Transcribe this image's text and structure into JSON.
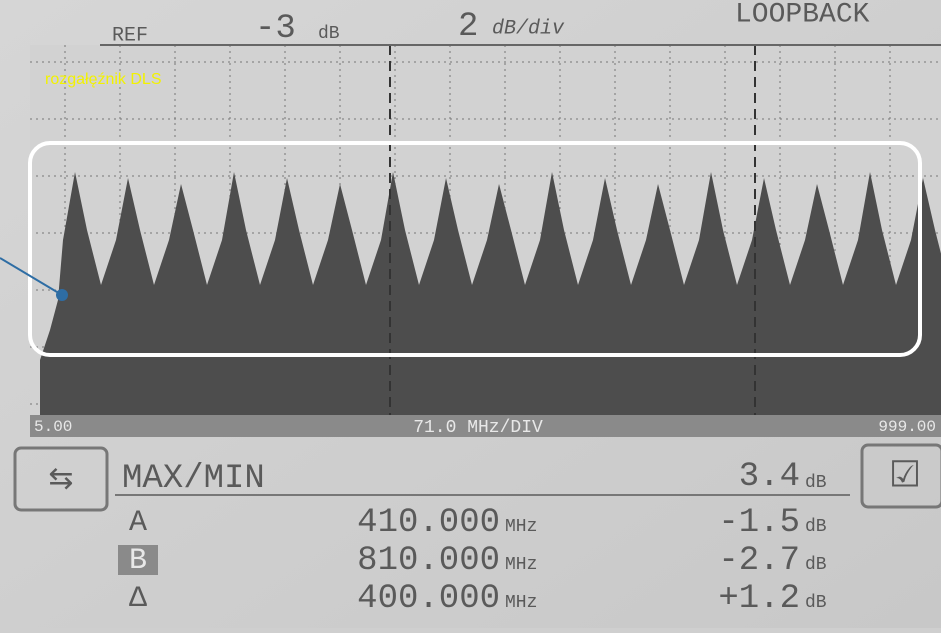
{
  "header": {
    "ref_label": "REF",
    "ref_value": "-3",
    "ref_unit": "dB",
    "scale_value": "2",
    "scale_unit": "dB/div",
    "mode": "LOOPBACK"
  },
  "annotation": "rozgałęźnik DLS",
  "axis": {
    "start": "5.00",
    "span": "71.0 MHz/DIV",
    "stop": "999.00"
  },
  "measurements": {
    "title": "MAX/MIN",
    "title_value": "3.4",
    "title_unit": "dB",
    "rows": [
      {
        "marker": "A",
        "freq": "410.000",
        "freq_unit": "MHz",
        "level": "-1.5",
        "level_unit": "dB"
      },
      {
        "marker": "B",
        "freq": "810.000",
        "freq_unit": "MHz",
        "level": "-2.7",
        "level_unit": "dB"
      },
      {
        "marker": "Δ",
        "freq": "400.000",
        "freq_unit": "MHz",
        "level": "+1.2",
        "level_unit": "dB"
      }
    ]
  }
}
